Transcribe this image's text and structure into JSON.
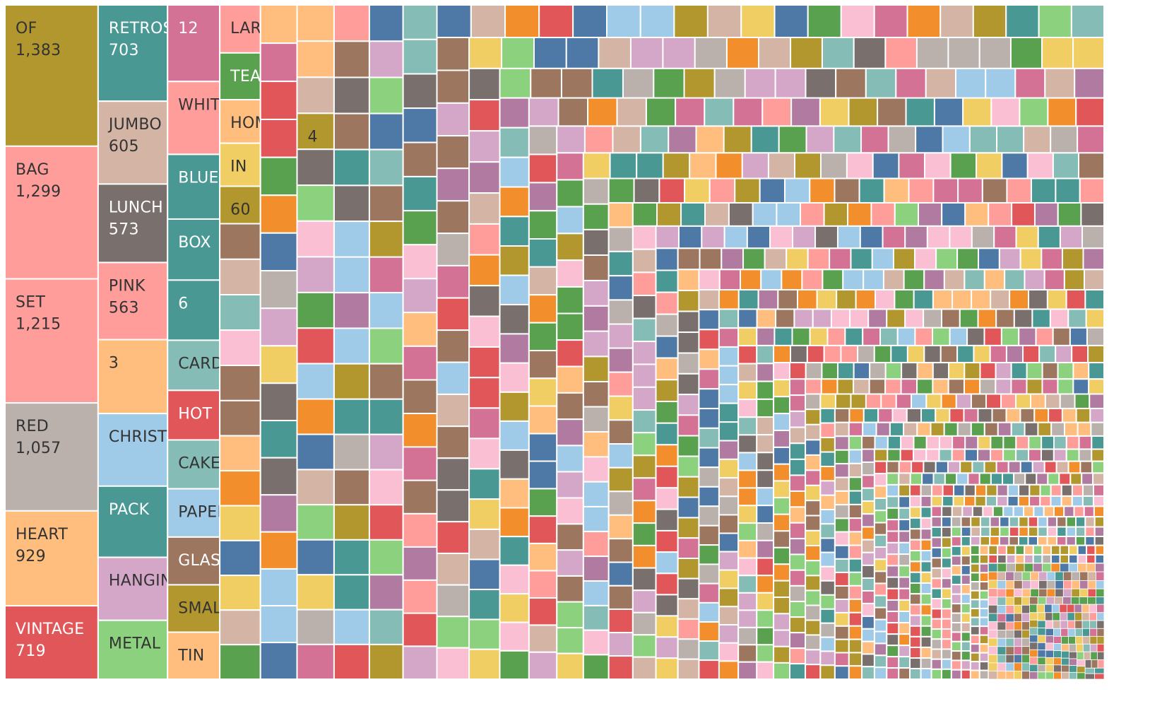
{
  "chart_data": {
    "type": "treemap",
    "measure": "word count",
    "labeled": [
      {
        "label": "OF",
        "value": 1383,
        "value_text": "1,383",
        "color": "#b2972e",
        "text_color": "#333333"
      },
      {
        "label": "BAG",
        "value": 1299,
        "value_text": "1,299",
        "color": "#ff9d9a",
        "text_color": "#333333"
      },
      {
        "label": "SET",
        "value": 1215,
        "value_text": "1,215",
        "color": "#ff9d9a",
        "text_color": "#333333"
      },
      {
        "label": "RED",
        "value": 1057,
        "value_text": "1,057",
        "color": "#bab0ac",
        "text_color": "#333333"
      },
      {
        "label": "HEART",
        "value": 929,
        "value_text": "929",
        "color": "#ffbe7d",
        "text_color": "#333333"
      },
      {
        "label": "VINTAGE",
        "value": 719,
        "value_text": "719",
        "color": "#e15759",
        "text_color": "#ffffff"
      },
      {
        "label": "RETROSPOT",
        "value": 703,
        "value_text": "703",
        "color": "#499894",
        "text_color": "#ffffff"
      },
      {
        "label": "JUMBO",
        "value": 605,
        "value_text": "605",
        "color": "#d4b4a5",
        "text_color": "#333333"
      },
      {
        "label": "LUNCH",
        "value": 573,
        "value_text": "573",
        "color": "#79706e",
        "text_color": "#ffffff"
      },
      {
        "label": "PINK",
        "value": 563,
        "value_text": "563",
        "color": "#ff9d9a",
        "text_color": "#333333"
      },
      {
        "label": "3",
        "value": 540,
        "color": "#ffbe7d",
        "text_color": "#333333"
      },
      {
        "label": "CHRISTMAS",
        "value": 530,
        "color": "#a0cbe8",
        "text_color": "#333333"
      },
      {
        "label": "PACK",
        "value": 520,
        "color": "#499894",
        "text_color": "#ffffff"
      },
      {
        "label": "HANGING",
        "value": 460,
        "color": "#d4a6c8",
        "text_color": "#333333"
      },
      {
        "label": "METAL",
        "value": 430,
        "color": "#8cd17d",
        "text_color": "#333333"
      },
      {
        "label": "12",
        "value": 420,
        "color": "#d37295",
        "text_color": "#ffffff"
      },
      {
        "label": "WHITE",
        "value": 400,
        "color": "#ff9d9a",
        "text_color": "#333333"
      },
      {
        "label": "BLUE",
        "value": 355,
        "color": "#499894",
        "text_color": "#ffffff"
      },
      {
        "label": "BOX",
        "value": 335,
        "color": "#499894",
        "text_color": "#ffffff"
      },
      {
        "label": "6",
        "value": 330,
        "color": "#499894",
        "text_color": "#ffffff"
      },
      {
        "label": "CARD",
        "value": 275,
        "color": "#86bcb6",
        "text_color": "#333333"
      },
      {
        "label": "HOT",
        "value": 272,
        "color": "#e15759",
        "text_color": "#ffffff"
      },
      {
        "label": "CAKE",
        "value": 268,
        "color": "#86bcb6",
        "text_color": "#333333"
      },
      {
        "label": "PAPER",
        "value": 265,
        "color": "#a0cbe8",
        "text_color": "#333333"
      },
      {
        "label": "GLASS",
        "value": 262,
        "color": "#9d7660",
        "text_color": "#ffffff"
      },
      {
        "label": "SMALL",
        "value": 260,
        "color": "#b2972e",
        "text_color": "#333333"
      },
      {
        "label": "TIN",
        "value": 258,
        "color": "#ffbe7d",
        "text_color": "#333333"
      },
      {
        "label": "LARGE",
        "value": 205,
        "color": "#ff9d9a",
        "text_color": "#333333"
      },
      {
        "label": "TEA",
        "value": 200,
        "color": "#59a14f",
        "text_color": "#ffffff"
      },
      {
        "label": "HOME",
        "value": 186,
        "color": "#ffbe7d",
        "text_color": "#333333"
      },
      {
        "label": "IN",
        "value": 184,
        "color": "#f1ce63",
        "text_color": "#333333"
      },
      {
        "label": "60",
        "value": 160,
        "color": "#b2972e",
        "text_color": "#333333"
      },
      {
        "label": "4",
        "value": 140,
        "color": "#b2972e",
        "text_color": "#333333"
      }
    ],
    "other_tiles": {
      "count": 1500,
      "max_value": 150,
      "palette": [
        "#b2972e",
        "#ff9d9a",
        "#bab0ac",
        "#ffbe7d",
        "#e15759",
        "#499894",
        "#d4b4a5",
        "#79706e",
        "#a0cbe8",
        "#d4a6c8",
        "#8cd17d",
        "#d37295",
        "#86bcb6",
        "#9d7660",
        "#f1ce63",
        "#59a14f",
        "#4e79a7",
        "#f28e2b",
        "#b07aa1",
        "#fabfd2"
      ]
    }
  }
}
